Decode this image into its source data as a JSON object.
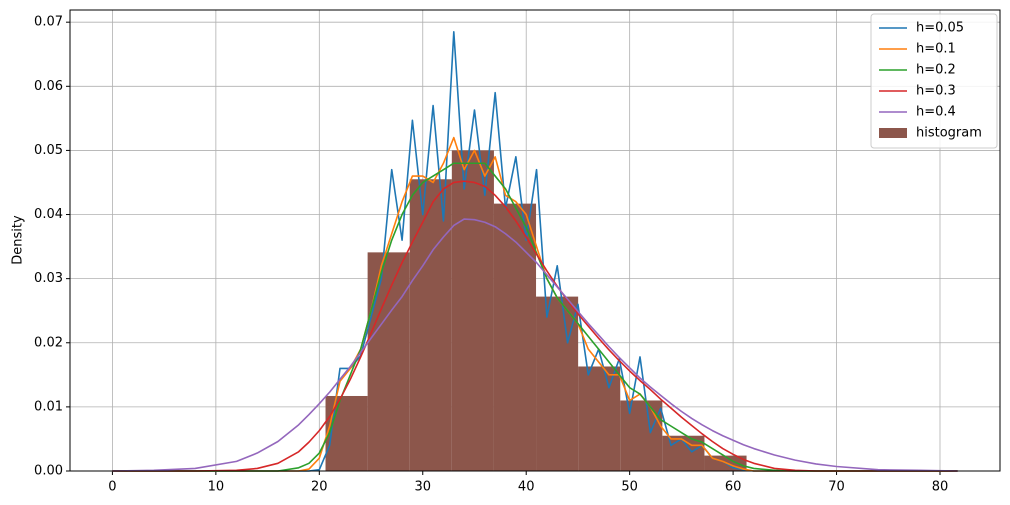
{
  "chart_data": {
    "type": "line",
    "y_label": "Density",
    "xlim": [
      -4.1,
      85.8
    ],
    "ylim": [
      0,
      0.0719
    ],
    "xticks": [
      0,
      10,
      20,
      30,
      40,
      50,
      60,
      70,
      80
    ],
    "yticks": [
      {
        "value": 0,
        "label": "0.00"
      },
      {
        "value": 0.01,
        "label": "0.01"
      },
      {
        "value": 0.02,
        "label": "0.02"
      },
      {
        "value": 0.03,
        "label": "0.03"
      },
      {
        "value": 0.04,
        "label": "0.04"
      },
      {
        "value": 0.05,
        "label": "0.05"
      },
      {
        "value": 0.06,
        "label": "0.06"
      },
      {
        "value": 0.07,
        "label": "0.07"
      }
    ],
    "grid": true,
    "legend": "upper right",
    "x": [
      0,
      4,
      8,
      12,
      14,
      16,
      18,
      19,
      20,
      21,
      22,
      23,
      24,
      25,
      26,
      27,
      28,
      29,
      30,
      31,
      32,
      33,
      34,
      35,
      36,
      37,
      38,
      39,
      40,
      41,
      42,
      43,
      44,
      45,
      46,
      47,
      48,
      49,
      50,
      51,
      52,
      53,
      54,
      55,
      56,
      57,
      58,
      59,
      60,
      61,
      62,
      64,
      66,
      68,
      70,
      74,
      78,
      81.7
    ],
    "series": [
      {
        "name": "h=0.05",
        "color": "#1f77b4",
        "values": [
          0,
          0,
          0,
          0,
          0,
          0,
          0,
          0,
          0.0002,
          0.004,
          0.016,
          0.016,
          0.018,
          0.024,
          0.03,
          0.047,
          0.036,
          0.0547,
          0.04,
          0.057,
          0.039,
          0.0685,
          0.044,
          0.0563,
          0.043,
          0.059,
          0.041,
          0.049,
          0.036,
          0.047,
          0.024,
          0.032,
          0.02,
          0.026,
          0.015,
          0.019,
          0.013,
          0.0175,
          0.009,
          0.0178,
          0.006,
          0.0098,
          0.004,
          0.005,
          0.003,
          0.004,
          0.002,
          0.0015,
          0.0005,
          0.0002,
          0,
          0,
          0,
          0,
          0,
          0,
          0,
          0
        ]
      },
      {
        "name": "h=0.1",
        "color": "#ff7f0e",
        "values": [
          0,
          0,
          0,
          0,
          0,
          0,
          0,
          0.0003,
          0.002,
          0.007,
          0.014,
          0.016,
          0.019,
          0.025,
          0.032,
          0.037,
          0.042,
          0.046,
          0.046,
          0.045,
          0.048,
          0.052,
          0.047,
          0.05,
          0.046,
          0.049,
          0.043,
          0.042,
          0.04,
          0.035,
          0.03,
          0.027,
          0.025,
          0.023,
          0.019,
          0.017,
          0.015,
          0.015,
          0.011,
          0.012,
          0.01,
          0.007,
          0.005,
          0.005,
          0.004,
          0.004,
          0.002,
          0.0015,
          0.0008,
          0.0003,
          0,
          0,
          0,
          0,
          0,
          0,
          0,
          0
        ]
      },
      {
        "name": "h=0.2",
        "color": "#2ca02c",
        "values": [
          0,
          0,
          0,
          0,
          0,
          0,
          0.0005,
          0.0012,
          0.0028,
          0.006,
          0.011,
          0.015,
          0.019,
          0.025,
          0.031,
          0.036,
          0.04,
          0.043,
          0.045,
          0.046,
          0.047,
          0.048,
          0.048,
          0.048,
          0.048,
          0.046,
          0.044,
          0.041,
          0.038,
          0.034,
          0.03,
          0.027,
          0.025,
          0.023,
          0.021,
          0.019,
          0.017,
          0.015,
          0.013,
          0.012,
          0.01,
          0.008,
          0.007,
          0.006,
          0.005,
          0.0045,
          0.0035,
          0.0025,
          0.0015,
          0.0008,
          0.0004,
          0.0001,
          0,
          0,
          0,
          0,
          0,
          0
        ]
      },
      {
        "name": "h=0.3",
        "color": "#d62728",
        "values": [
          0,
          0,
          0,
          0.0001,
          0.0004,
          0.0012,
          0.003,
          0.0045,
          0.0063,
          0.0085,
          0.0112,
          0.0143,
          0.0178,
          0.0215,
          0.0253,
          0.029,
          0.0325,
          0.0357,
          0.0388,
          0.042,
          0.044,
          0.045,
          0.0452,
          0.045,
          0.0444,
          0.043,
          0.0412,
          0.039,
          0.0365,
          0.0338,
          0.0312,
          0.0288,
          0.0266,
          0.0245,
          0.0226,
          0.0207,
          0.0189,
          0.0172,
          0.0156,
          0.0141,
          0.0127,
          0.0112,
          0.0098,
          0.0084,
          0.0071,
          0.0058,
          0.0046,
          0.0035,
          0.0026,
          0.0018,
          0.0012,
          0.0004,
          0.0001,
          0,
          0,
          0,
          0,
          0
        ]
      },
      {
        "name": "h=0.4",
        "color": "#9467bd",
        "values": [
          0,
          0.0001,
          0.0004,
          0.0015,
          0.0028,
          0.0046,
          0.0072,
          0.0088,
          0.0105,
          0.0123,
          0.0143,
          0.0163,
          0.0185,
          0.0207,
          0.0229,
          0.0251,
          0.0272,
          0.0297,
          0.032,
          0.0345,
          0.0365,
          0.0383,
          0.0393,
          0.0392,
          0.0388,
          0.0381,
          0.037,
          0.0357,
          0.0341,
          0.0325,
          0.0306,
          0.0287,
          0.0268,
          0.0249,
          0.023,
          0.0212,
          0.0194,
          0.0177,
          0.0161,
          0.0145,
          0.0131,
          0.0118,
          0.0105,
          0.0093,
          0.0082,
          0.0072,
          0.0063,
          0.0055,
          0.0048,
          0.0041,
          0.0035,
          0.0025,
          0.0017,
          0.0011,
          0.0007,
          0.0002,
          0.0001,
          0
        ]
      }
    ],
    "histogram": {
      "name": "histogram",
      "color": "#8c564b",
      "bins": [
        20.6,
        24.67,
        28.74,
        32.81,
        36.88,
        40.95,
        45.02,
        49.09,
        53.16,
        57.23,
        61.3
      ],
      "counts": [
        0.0117,
        0.0341,
        0.0455,
        0.05,
        0.0417,
        0.0272,
        0.0163,
        0.011,
        0.0055,
        0.0024
      ]
    }
  }
}
